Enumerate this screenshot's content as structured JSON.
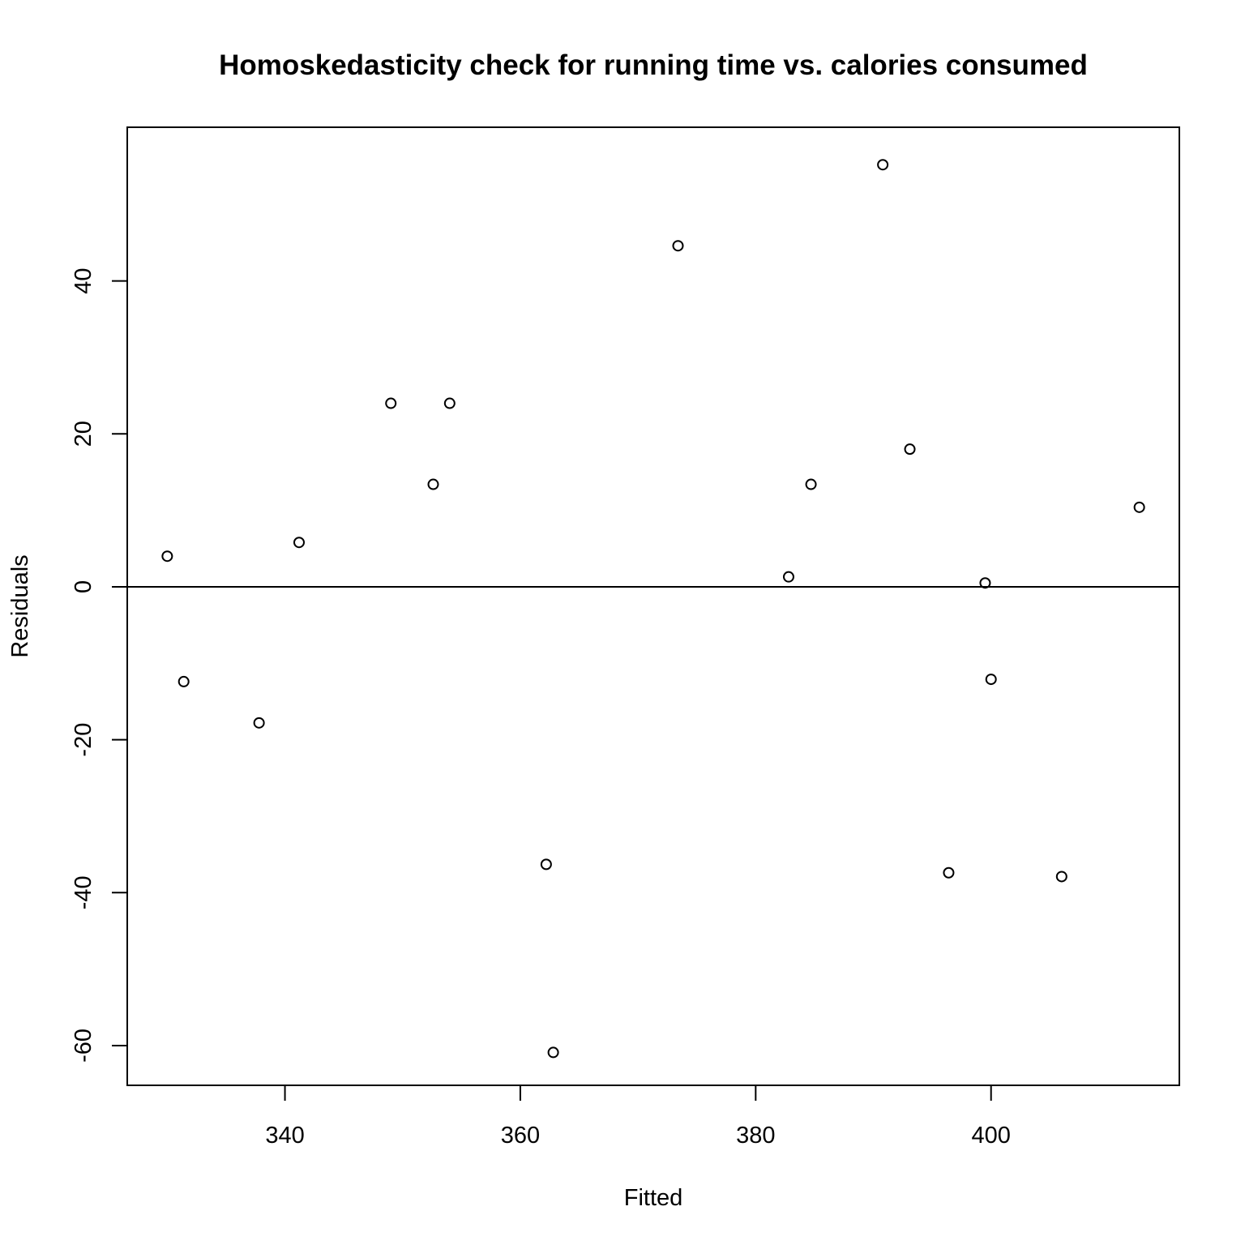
{
  "chart_data": {
    "type": "scatter",
    "title": "Homoskedasticity check for running time vs. calories consumed",
    "xlabel": "Fitted",
    "ylabel": "Residuals",
    "xlim": [
      326.6,
      416.0
    ],
    "ylim": [
      -65.2,
      60.1
    ],
    "xticks": [
      340,
      360,
      380,
      400
    ],
    "yticks": [
      -60,
      -40,
      -20,
      0,
      20,
      40
    ],
    "xtick_labels": [
      "340",
      "360",
      "380",
      "400"
    ],
    "ytick_labels": [
      "-60",
      "-40",
      "-20",
      "0",
      "20",
      "40"
    ],
    "reference_line": 0,
    "grid": false,
    "marker": "open-circle",
    "points": [
      {
        "x": 330.0,
        "y": 4.0
      },
      {
        "x": 331.4,
        "y": -12.4
      },
      {
        "x": 337.8,
        "y": -17.8
      },
      {
        "x": 341.2,
        "y": 5.8
      },
      {
        "x": 349.0,
        "y": 24.0
      },
      {
        "x": 352.6,
        "y": 13.4
      },
      {
        "x": 354.0,
        "y": 24.0
      },
      {
        "x": 362.2,
        "y": -36.3
      },
      {
        "x": 362.8,
        "y": -60.9
      },
      {
        "x": 373.4,
        "y": 44.6
      },
      {
        "x": 382.8,
        "y": 1.3
      },
      {
        "x": 384.7,
        "y": 13.4
      },
      {
        "x": 390.8,
        "y": 55.2
      },
      {
        "x": 393.1,
        "y": 18.0
      },
      {
        "x": 396.4,
        "y": -37.4
      },
      {
        "x": 399.5,
        "y": 0.5
      },
      {
        "x": 400.0,
        "y": -12.1
      },
      {
        "x": 406.0,
        "y": -37.9
      },
      {
        "x": 412.6,
        "y": 10.4
      }
    ]
  }
}
